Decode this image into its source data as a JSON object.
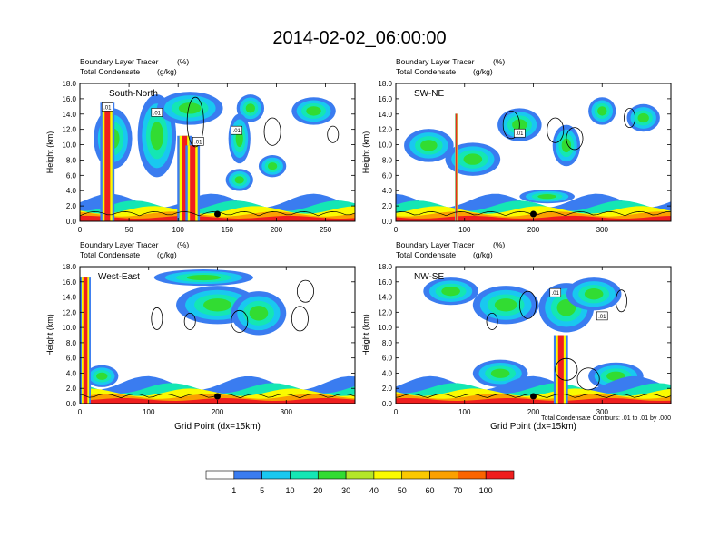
{
  "title": "2014-02-02_06:00:00",
  "chart_data": [
    {
      "type": "heatmap",
      "label": "South-North",
      "header_left_1": "Boundary Layer Tracer",
      "header_unit_1": "(%)",
      "header_left_2": "Total Condensate",
      "header_unit_2": "(g/kg)",
      "xlabel": "",
      "ylabel": "Height (km)",
      "xlim": [
        0,
        280
      ],
      "ylim": [
        0,
        18
      ],
      "xticks": [
        0,
        50,
        100,
        150,
        200,
        250
      ],
      "yticks": [
        "0.0",
        "2.0",
        "4.0",
        "6.0",
        "8.0",
        "10.0",
        "12.0",
        "14.0",
        "16.0",
        "18.0"
      ],
      "contour_labels": [
        ".01",
        ".01",
        ".01",
        ".01"
      ],
      "marker_x": 140
    },
    {
      "type": "heatmap",
      "label": "SW-NE",
      "header_left_1": "Boundary Layer Tracer",
      "header_unit_1": "(%)",
      "header_left_2": "Total Condensate",
      "header_unit_2": "(g/kg)",
      "xlabel": "",
      "ylabel": "Height (km)",
      "xlim": [
        0,
        400
      ],
      "ylim": [
        0,
        18
      ],
      "xticks": [
        0,
        100,
        200,
        300
      ],
      "yticks": [
        "0.0",
        "2.0",
        "4.0",
        "6.0",
        "8.0",
        "10.0",
        "12.0",
        "14.0",
        "16.0",
        "18.0"
      ],
      "contour_labels": [
        ".01"
      ],
      "marker_x": 200
    },
    {
      "type": "heatmap",
      "label": "West-East",
      "header_left_1": "Boundary Layer Tracer",
      "header_unit_1": "(%)",
      "header_left_2": "Total Condensate",
      "header_unit_2": "(g/kg)",
      "xlabel": "Grid Point (dx=15km)",
      "ylabel": "Height (km)",
      "xlim": [
        0,
        400
      ],
      "ylim": [
        0,
        18
      ],
      "xticks": [
        0,
        100,
        200,
        300
      ],
      "yticks": [
        "0.0",
        "2.0",
        "4.0",
        "6.0",
        "8.0",
        "10.0",
        "12.0",
        "14.0",
        "16.0",
        "18.0"
      ],
      "contour_labels": [],
      "marker_x": 200
    },
    {
      "type": "heatmap",
      "label": "NW-SE",
      "header_left_1": "Boundary Layer Tracer",
      "header_unit_1": "(%)",
      "header_left_2": "Total Condensate",
      "header_unit_2": "(g/kg)",
      "xlabel": "Grid Point (dx=15km)",
      "ylabel": "Height (km)",
      "xlim": [
        0,
        400
      ],
      "ylim": [
        0,
        18
      ],
      "xticks": [
        0,
        100,
        200,
        300
      ],
      "yticks": [
        "0.0",
        "2.0",
        "4.0",
        "6.0",
        "8.0",
        "10.0",
        "12.0",
        "14.0",
        "16.0",
        "18.0"
      ],
      "contour_labels": [
        ".01",
        ".01"
      ],
      "marker_x": 200,
      "footnote": "Total Condensate Contours: .01 to .01 by .000"
    }
  ],
  "colorbar": {
    "labels": [
      "1",
      "5",
      "10",
      "20",
      "30",
      "40",
      "50",
      "60",
      "70",
      "100"
    ],
    "colors": [
      "#ffffff",
      "#3a7cf0",
      "#19c8f0",
      "#14e6b4",
      "#32dc32",
      "#b4e628",
      "#fafa00",
      "#fac800",
      "#faa000",
      "#fa6400",
      "#f01e1e"
    ]
  }
}
